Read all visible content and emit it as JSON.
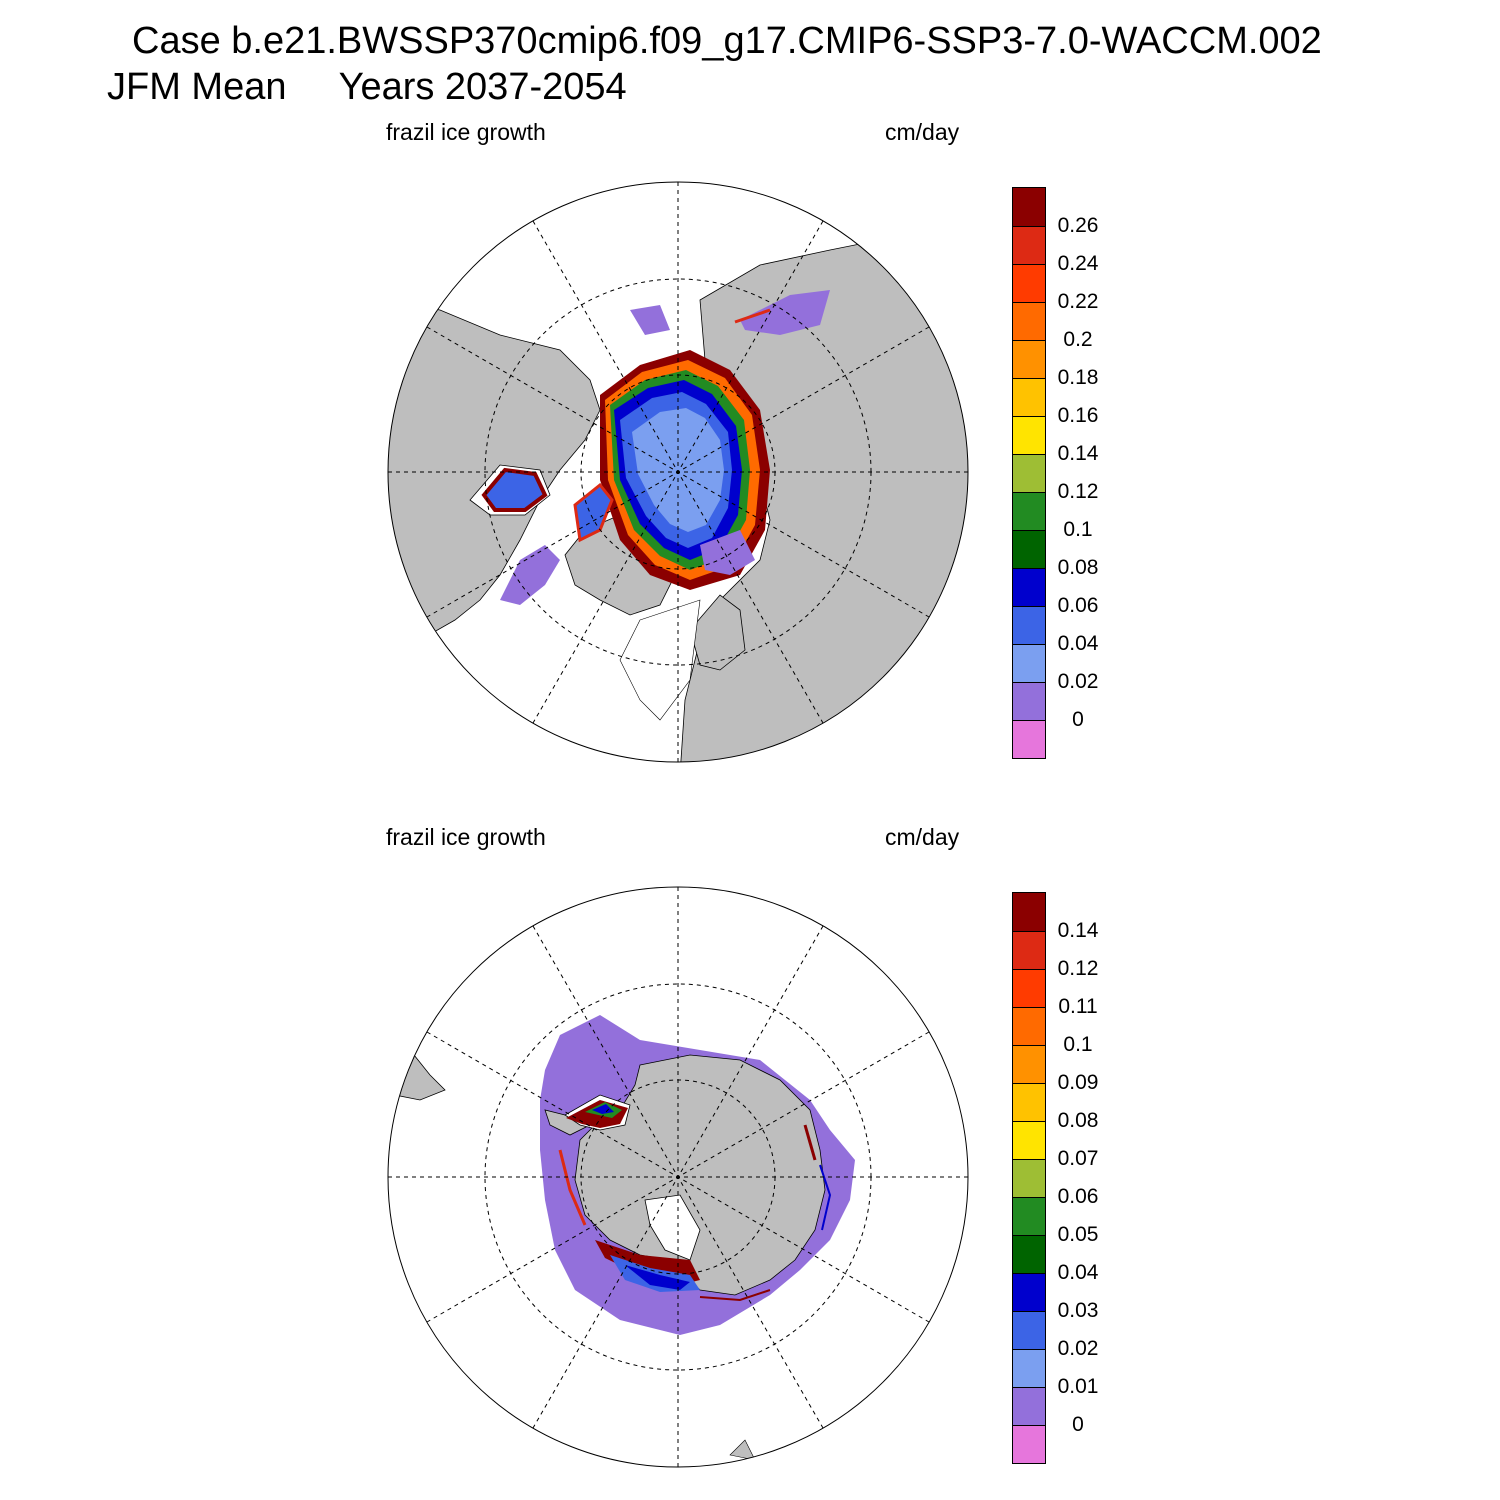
{
  "header": {
    "case_line": "Case b.e21.BWSSP370cmip6.f09_g17.CMIP6-SSP3-7.0-WACCM.002",
    "period_line": "JFM Mean     Years 2037-2054"
  },
  "panels": [
    {
      "id": "north",
      "variable_label": "frazil ice growth",
      "units_label": "cm/day",
      "hemisphere_icon": "north-pole-map",
      "colorbar": {
        "labels": [
          "0.26",
          "0.24",
          "0.22",
          "0.2",
          "0.18",
          "0.16",
          "0.14",
          "0.12",
          "0.1",
          "0.08",
          "0.06",
          "0.04",
          "0.02",
          "0"
        ],
        "colors_top_to_bottom": [
          "#8b0000",
          "#dd2a14",
          "#ff3b00",
          "#ff6a00",
          "#ff9100",
          "#ffc200",
          "#ffe400",
          "#9ebe34",
          "#228b22",
          "#006400",
          "#0000cd",
          "#3c64e6",
          "#7b9ff0",
          "#9370db",
          "#e676dc"
        ]
      }
    },
    {
      "id": "south",
      "variable_label": "frazil ice growth",
      "units_label": "cm/day",
      "hemisphere_icon": "south-pole-map",
      "colorbar": {
        "labels": [
          "0.14",
          "0.12",
          "0.11",
          "0.1",
          "0.09",
          "0.08",
          "0.07",
          "0.06",
          "0.05",
          "0.04",
          "0.03",
          "0.02",
          "0.01",
          "0"
        ],
        "colors_top_to_bottom": [
          "#8b0000",
          "#dd2a14",
          "#ff3b00",
          "#ff6a00",
          "#ff9100",
          "#ffc200",
          "#ffe400",
          "#9ebe34",
          "#228b22",
          "#006400",
          "#0000cd",
          "#3c64e6",
          "#7b9ff0",
          "#9370db",
          "#e676dc"
        ]
      }
    }
  ],
  "colors": {
    "land": "#bebebe",
    "background": "#ffffff",
    "grid": "#000000"
  }
}
